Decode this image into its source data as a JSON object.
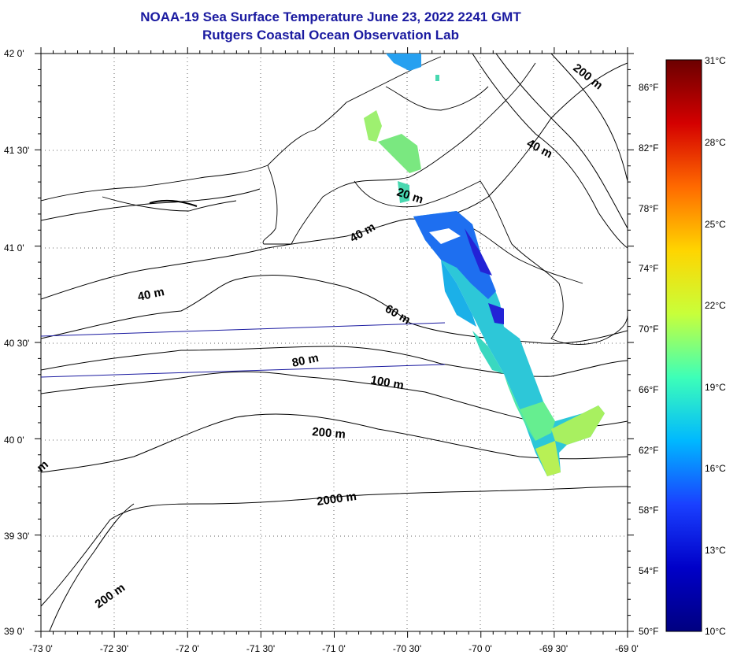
{
  "title": "NOAA-19 Sea Surface Temperature June 23, 2022 2241 GMT",
  "subtitle": "Rutgers Coastal Ocean Observation Lab",
  "axes": {
    "lon_labels": [
      "-73 0'",
      "-72 30'",
      "-72 0'",
      "-71 30'",
      "-71 0'",
      "-70 30'",
      "-70 0'",
      "-69 30'",
      "-69 0'"
    ],
    "lat_labels": [
      "42 0'",
      "41 30'",
      "41 0'",
      "40 30'",
      "40 0'",
      "39 30'",
      "39 0'"
    ]
  },
  "colorbar": {
    "celsius_labels": [
      "31°C",
      "28°C",
      "25°C",
      "22°C",
      "19°C",
      "16°C",
      "13°C",
      "10°C"
    ],
    "fahrenheit_labels": [
      "86°F",
      "82°F",
      "78°F",
      "74°F",
      "70°F",
      "66°F",
      "62°F",
      "58°F",
      "54°F",
      "50°F"
    ],
    "colors": [
      "#6b0000",
      "#d40000",
      "#ff6a00",
      "#ffd500",
      "#c8ff3a",
      "#3dffb8",
      "#00b8ff",
      "#1a40ff",
      "#0000c8",
      "#000080"
    ]
  },
  "contour_labels": [
    "200 m",
    "40 m",
    "20 m",
    "40 m",
    "40 m",
    "60 m",
    "80 m",
    "100 m",
    "200 m",
    "2000 m",
    "200 m",
    "m"
  ]
}
